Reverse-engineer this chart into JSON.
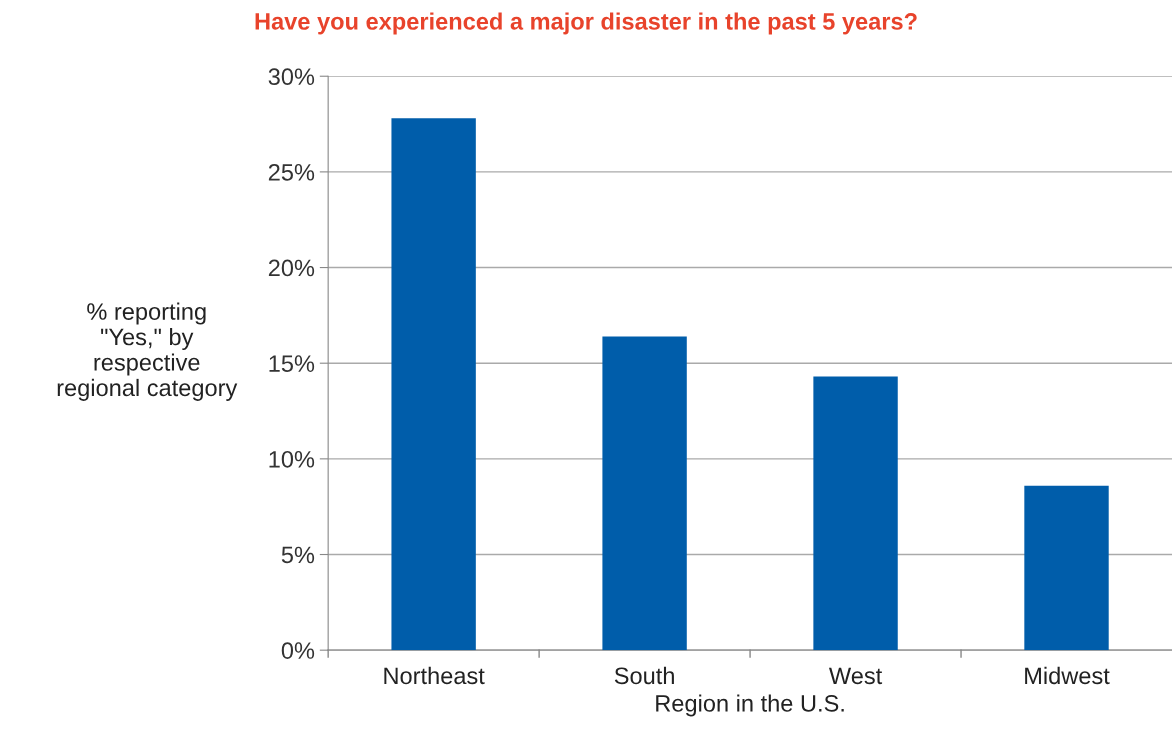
{
  "chart_data": {
    "type": "bar",
    "title": "Have you experienced a major disaster in the past 5 years?",
    "xlabel": "Region in the U.S.",
    "ylabel": "% reporting\n\"Yes,\" by\nrespective\nregional category",
    "categories": [
      "Northeast",
      "South",
      "West",
      "Midwest"
    ],
    "values": [
      27.8,
      16.4,
      14.3,
      8.6
    ],
    "color": "#005daa",
    "ylim": [
      0,
      30
    ],
    "yticks": [
      {
        "value": 0,
        "label": "0%"
      },
      {
        "value": 5,
        "label": "5%"
      },
      {
        "value": 10,
        "label": "10%"
      },
      {
        "value": 15,
        "label": "15%"
      },
      {
        "value": 20,
        "label": "20%"
      },
      {
        "value": 25,
        "label": "25%"
      },
      {
        "value": 30,
        "label": "30%"
      }
    ],
    "grid": "y"
  }
}
